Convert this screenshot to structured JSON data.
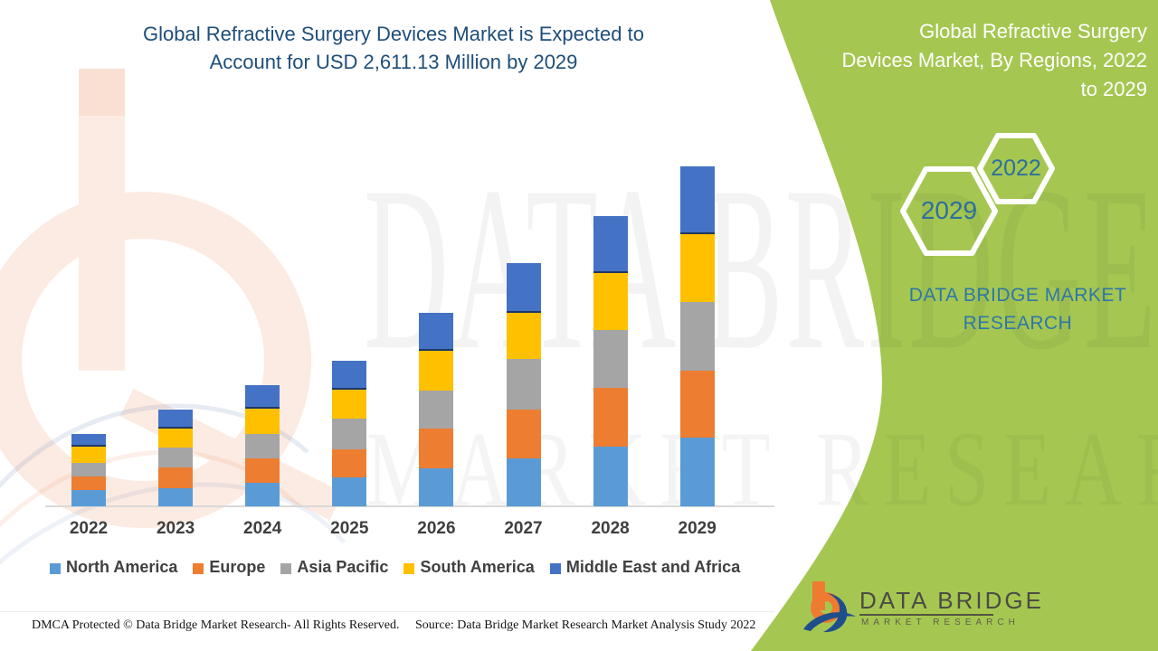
{
  "title": {
    "lines": [
      "Global Refractive Surgery Devices  Market is Expected to",
      "Account for USD 2,611.13 Million by 2029"
    ]
  },
  "right_panel": {
    "heading_lines": [
      "Global Refractive Surgery",
      "Devices  Market, By Regions, 2022",
      "to 2029"
    ],
    "hexagons": [
      {
        "year": "2029"
      },
      {
        "year": "2022"
      }
    ],
    "brand_lines": [
      "DATA BRIDGE MARKET",
      "RESEARCH"
    ],
    "logo": {
      "wordmark": "DATA BRIDGE",
      "subtext": "MARKET RESEARCH"
    }
  },
  "watermark": {
    "line1": "DATA BRIDGE",
    "line2": "MARKET RESEARCH"
  },
  "footer": {
    "left": "DMCA Protected © Data Bridge Market Research- All Rights Reserved.",
    "right": "Source: Data Bridge Market Research Market Analysis Study 2022"
  },
  "colors": {
    "panel_green": "#a5c751",
    "title_blue": "#1f4e79",
    "hexagon_text": "#2d6f9c",
    "brand_teal": "#2e77a8",
    "axis_gray": "#d9d9d9",
    "label_gray": "#404040"
  },
  "chart_data": {
    "type": "bar",
    "stacked": true,
    "title": "Global Refractive Surgery Devices Market is Expected to Account for USD 2,611.13 Million by 2029",
    "unit": "USD Million",
    "categories": [
      "2022",
      "2023",
      "2024",
      "2025",
      "2026",
      "2027",
      "2028",
      "2029"
    ],
    "series": [
      {
        "name": "North America",
        "color": "#5B9BD5",
        "values": [
          125,
          139,
          181,
          222,
          292,
          368,
          458,
          528
        ]
      },
      {
        "name": "Europe",
        "color": "#ED7D31",
        "values": [
          104,
          158,
          188,
          215,
          306,
          375,
          451,
          514
        ]
      },
      {
        "name": "Asia Pacific",
        "color": "#A5A5A5",
        "values": [
          104,
          152,
          188,
          236,
          292,
          389,
          444,
          528
        ]
      },
      {
        "name": "South America",
        "color": "#FFC000",
        "values": [
          125,
          146,
          194,
          222,
          306,
          354,
          438,
          521
        ]
      },
      {
        "name": "Middle East and Africa",
        "color": "#4472C4",
        "values": [
          97,
          146,
          181,
          222,
          292,
          382,
          438,
          520.13
        ]
      }
    ],
    "totals": [
      555,
      741,
      932,
      1117,
      1488,
      1868,
      2229,
      2611.13
    ],
    "xlabel": "",
    "ylabel": "",
    "ylim": [
      0,
      2780
    ],
    "grid": false,
    "y_axis_visible": false,
    "legend_position": "bottom"
  }
}
